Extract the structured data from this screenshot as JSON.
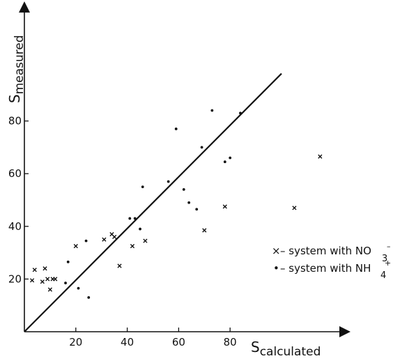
{
  "chart_data": {
    "type": "scatter",
    "title": "",
    "xlabel": "S",
    "xlabel_sub": "calculated",
    "ylabel": "S",
    "ylabel_sub": "measured",
    "xlim": [
      0,
      120
    ],
    "ylim": [
      0,
      115
    ],
    "x_ticks": [
      "20",
      "40",
      "60",
      "80"
    ],
    "y_ticks": [
      "20",
      "40",
      "60",
      "80"
    ],
    "grid": false,
    "legend_position": "right",
    "reference_line": {
      "from": [
        0,
        0
      ],
      "to": [
        100,
        98
      ]
    },
    "legend": {
      "nitrate": {
        "marker": "×",
        "text": "– system with NO",
        "sup": "–",
        "sub": "3"
      },
      "ammonium": {
        "marker": "•",
        "text": "– system with NH",
        "sup": "+",
        "sub": "4"
      }
    },
    "series": [
      {
        "marker": "x",
        "points": [
          [
            3,
            19.5
          ],
          [
            4,
            23.5
          ],
          [
            7,
            19
          ],
          [
            8,
            24
          ],
          [
            9,
            20
          ],
          [
            10,
            16
          ],
          [
            11,
            20
          ],
          [
            12,
            20
          ],
          [
            20,
            32.5
          ],
          [
            31,
            35
          ],
          [
            34,
            37
          ],
          [
            35,
            36
          ],
          [
            37,
            25
          ],
          [
            42,
            32.5
          ],
          [
            47,
            34.5
          ],
          [
            70,
            38.5
          ],
          [
            78,
            47.5
          ],
          [
            105,
            47
          ],
          [
            115,
            66.5
          ]
        ]
      },
      {
        "marker": "dot",
        "points": [
          [
            16,
            18.5
          ],
          [
            17,
            26.5
          ],
          [
            21,
            16.5
          ],
          [
            24,
            34.5
          ],
          [
            25,
            13
          ],
          [
            41,
            43
          ],
          [
            43,
            43
          ],
          [
            45,
            39
          ],
          [
            46,
            55
          ],
          [
            56,
            57
          ],
          [
            59,
            77
          ],
          [
            62,
            54
          ],
          [
            64,
            49
          ],
          [
            67,
            46.5
          ],
          [
            69,
            70
          ],
          [
            73,
            84
          ],
          [
            78,
            64.5
          ],
          [
            80,
            66
          ],
          [
            84,
            83
          ]
        ]
      }
    ]
  }
}
